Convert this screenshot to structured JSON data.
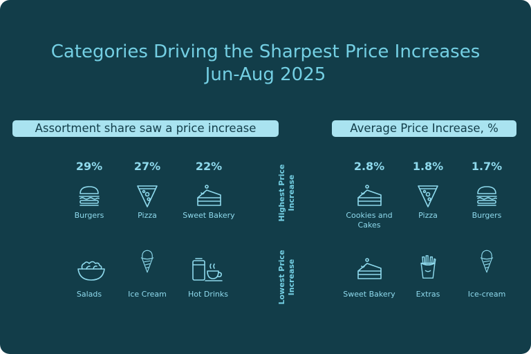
{
  "title": {
    "line1": "Categories Driving the Sharpest Price Increases",
    "line2": "Jun-Aug 2025"
  },
  "left_header": "Assortment share saw a price increase",
  "right_header": "Average Price Increase, %",
  "row_labels": {
    "highest": "Highest Price Increase",
    "lowest": "Lowest Price Increase"
  },
  "colors": {
    "background": "#123d49",
    "accent": "#74cfe3",
    "pill": "#a9e3f0"
  },
  "chart_data": [
    {
      "type": "table",
      "title": "Assortment share saw a price increase",
      "highest": [
        {
          "category": "Burgers",
          "value": "29%",
          "icon": "burger-icon"
        },
        {
          "category": "Pizza",
          "value": "27%",
          "icon": "pizza-icon"
        },
        {
          "category": "Sweet Bakery",
          "value": "22%",
          "icon": "cake-icon"
        }
      ],
      "lowest": [
        {
          "category": "Salads",
          "icon": "salad-icon"
        },
        {
          "category": "Ice Cream",
          "icon": "ice-cream-icon"
        },
        {
          "category": "Hot Drinks",
          "icon": "hot-drink-icon"
        }
      ]
    },
    {
      "type": "table",
      "title": "Average Price Increase, %",
      "highest": [
        {
          "category": "Cookies and Cakes",
          "value": "2.8%",
          "icon": "cake-icon"
        },
        {
          "category": "Pizza",
          "value": "1.8%",
          "icon": "pizza-icon"
        },
        {
          "category": "Burgers",
          "value": "1.7%",
          "icon": "burger-icon"
        }
      ],
      "lowest": [
        {
          "category": "Sweet Bakery",
          "icon": "cake-icon"
        },
        {
          "category": "Extras",
          "icon": "fries-icon"
        },
        {
          "category": "Ice-cream",
          "icon": "ice-cream-icon"
        }
      ]
    }
  ]
}
